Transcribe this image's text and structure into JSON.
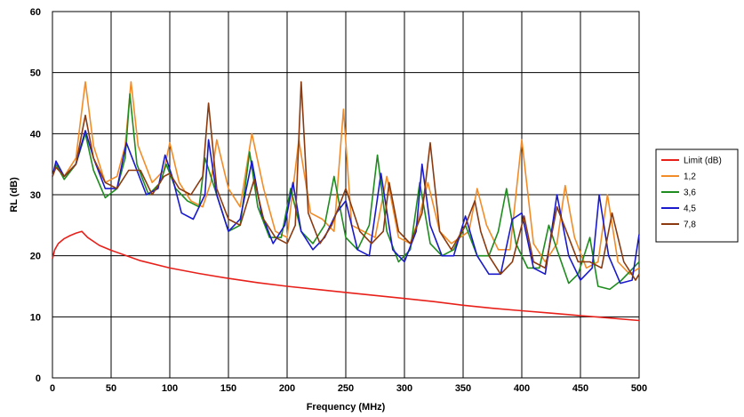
{
  "chart_data": {
    "type": "line",
    "xlabel": "Frequency (MHz)",
    "ylabel": "RL (dB)",
    "xlim": [
      0,
      500
    ],
    "ylim": [
      0,
      60
    ],
    "xticks": [
      0,
      50,
      100,
      150,
      200,
      250,
      300,
      350,
      400,
      450,
      500
    ],
    "yticks": [
      0,
      10,
      20,
      30,
      40,
      50,
      60
    ],
    "grid": true,
    "legend_position": "right",
    "series": [
      {
        "name": "Limit (dB)",
        "color": "#e8201a",
        "x": [
          0,
          2,
          5,
          10,
          15,
          20,
          25,
          30,
          40,
          50,
          75,
          100,
          125,
          150,
          175,
          200,
          225,
          250,
          275,
          300,
          325,
          350,
          375,
          400,
          425,
          450,
          475,
          500
        ],
        "y": [
          19.5,
          21.0,
          22.0,
          22.8,
          23.3,
          23.7,
          24.0,
          23.0,
          21.7,
          20.9,
          19.2,
          18.0,
          17.1,
          16.3,
          15.6,
          15.0,
          14.5,
          14.0,
          13.5,
          13.0,
          12.5,
          11.9,
          11.4,
          11.0,
          10.6,
          10.2,
          9.8,
          9.4
        ]
      },
      {
        "name": "1,2",
        "color": "#f28c28",
        "x": [
          0,
          3,
          10,
          20,
          28,
          35,
          45,
          55,
          62,
          67,
          73,
          85,
          95,
          100,
          108,
          118,
          128,
          135,
          140,
          150,
          160,
          170,
          180,
          190,
          200,
          210,
          220,
          230,
          240,
          248,
          255,
          265,
          275,
          285,
          295,
          305,
          312,
          320,
          330,
          340,
          355,
          362,
          370,
          380,
          390,
          400,
          410,
          420,
          430,
          437,
          445,
          455,
          465,
          473,
          482,
          492,
          500
        ],
        "y": [
          33,
          35,
          33,
          36,
          48.5,
          38,
          32,
          33,
          38,
          48.5,
          38,
          32,
          34,
          38.5,
          32,
          29,
          28,
          32,
          39,
          31,
          28,
          40,
          31,
          24,
          23,
          39,
          27,
          26,
          24,
          44,
          25,
          24,
          23,
          33,
          23,
          22,
          26,
          32,
          24,
          22,
          24,
          31,
          25,
          21,
          21,
          39,
          22,
          19,
          22,
          31.5,
          23,
          18,
          19,
          30,
          19,
          17,
          18
        ]
      },
      {
        "name": "3,6",
        "color": "#1e8c1e",
        "x": [
          0,
          3,
          10,
          20,
          28,
          35,
          45,
          55,
          62,
          66,
          72,
          82,
          92,
          97,
          105,
          115,
          125,
          130,
          140,
          150,
          160,
          168,
          175,
          185,
          195,
          203,
          212,
          222,
          232,
          240,
          250,
          260,
          270,
          277,
          285,
          295,
          305,
          313,
          322,
          332,
          342,
          352,
          362,
          372,
          380,
          387,
          395,
          405,
          415,
          423,
          430,
          440,
          448,
          458,
          465,
          475,
          485,
          495,
          500
        ],
        "y": [
          33,
          35,
          32.5,
          35,
          40,
          34,
          29.5,
          31,
          36,
          46.5,
          35,
          30,
          32,
          35,
          31,
          29,
          28,
          36,
          30,
          24,
          25,
          37,
          28,
          23,
          23,
          31,
          24,
          22,
          25,
          33,
          23,
          21,
          25,
          36.5,
          24,
          19,
          21,
          32,
          22,
          20,
          21,
          25,
          20,
          20,
          24,
          31,
          22,
          18,
          18,
          25,
          21,
          15.5,
          17,
          23,
          15,
          14.5,
          16,
          18,
          19
        ]
      },
      {
        "name": "4,5",
        "color": "#1a1acc",
        "x": [
          0,
          3,
          10,
          20,
          28,
          35,
          45,
          55,
          63,
          70,
          80,
          90,
          96,
          102,
          110,
          120,
          130,
          133,
          140,
          150,
          160,
          170,
          178,
          188,
          198,
          205,
          212,
          222,
          232,
          242,
          250,
          260,
          270,
          280,
          290,
          300,
          310,
          315,
          322,
          332,
          342,
          352,
          362,
          372,
          382,
          392,
          400,
          410,
          420,
          430,
          440,
          450,
          460,
          466,
          474,
          484,
          494,
          500
        ],
        "y": [
          33,
          35.5,
          33,
          35,
          40.5,
          36,
          31,
          31,
          38.5,
          35,
          30,
          31,
          36.5,
          33,
          27,
          26,
          30,
          39,
          30,
          24,
          26,
          35.5,
          27,
          22,
          25,
          32,
          24,
          21,
          23,
          27,
          29,
          21,
          20,
          33.5,
          21,
          19,
          24,
          35,
          25,
          20,
          20,
          26.5,
          20,
          17,
          17,
          26,
          27,
          18,
          17,
          30,
          20,
          16,
          18,
          30,
          20,
          15.5,
          16,
          23.5
        ]
      },
      {
        "name": "7,8",
        "color": "#8b3a0f",
        "x": [
          0,
          3,
          10,
          20,
          28,
          35,
          45,
          55,
          65,
          75,
          85,
          95,
          100,
          108,
          118,
          128,
          133,
          140,
          150,
          160,
          172,
          180,
          190,
          200,
          207,
          212,
          218,
          228,
          238,
          250,
          262,
          272,
          282,
          287,
          295,
          305,
          315,
          322,
          330,
          340,
          352,
          360,
          365,
          372,
          382,
          392,
          402,
          410,
          420,
          430,
          438,
          448,
          458,
          468,
          477,
          487,
          497,
          500
        ],
        "y": [
          33,
          34.5,
          33,
          35,
          43,
          36,
          32,
          31,
          34,
          34,
          30,
          33,
          33.5,
          31,
          30,
          33,
          45,
          31,
          26,
          25,
          32.5,
          26,
          23,
          22,
          25,
          48.5,
          27,
          22,
          25,
          31,
          24,
          22,
          24,
          32,
          24,
          22,
          27,
          38.5,
          24,
          21,
          25,
          29,
          24,
          20,
          17,
          19,
          26.5,
          19,
          18,
          28,
          24,
          19,
          19,
          18,
          27,
          19,
          16,
          17
        ]
      }
    ]
  }
}
